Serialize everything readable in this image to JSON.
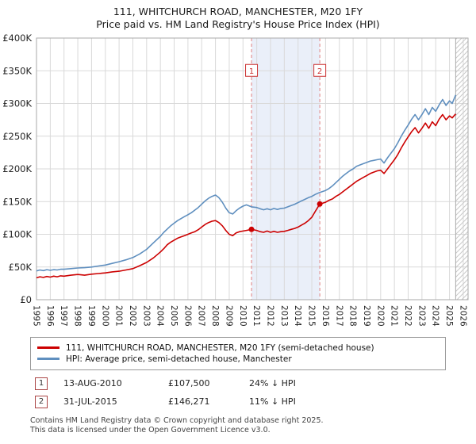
{
  "title": {
    "line1": "111, WHITCHURCH ROAD, MANCHESTER, M20 1FY",
    "line2": "Price paid vs. HM Land Registry's House Price Index (HPI)"
  },
  "chart_data": {
    "type": "line",
    "xlim": [
      1995,
      2026.35
    ],
    "ylim": [
      0,
      400000
    ],
    "yticks": [
      0,
      50000,
      100000,
      150000,
      200000,
      250000,
      300000,
      350000,
      400000
    ],
    "ytick_labels": [
      "£0",
      "£50K",
      "£100K",
      "£150K",
      "£200K",
      "£250K",
      "£300K",
      "£350K",
      "£400K"
    ],
    "x_years": [
      1995,
      1996,
      1997,
      1998,
      1999,
      2000,
      2001,
      2002,
      2003,
      2004,
      2005,
      2006,
      2007,
      2008,
      2009,
      2010,
      2011,
      2012,
      2013,
      2014,
      2015,
      2016,
      2017,
      2018,
      2019,
      2020,
      2021,
      2022,
      2023,
      2024,
      2025,
      2026
    ],
    "grid": true,
    "legend_position": "bottom",
    "colors": {
      "grid": "#d9d9d9",
      "border": "#aaaaaa",
      "dashed": "#e08080",
      "hatch": "#c9c9c9",
      "marker_box_border": "#cc3333",
      "marker_box_text": "#cc3333"
    },
    "shaded_region": {
      "from": 2010.62,
      "to": 2015.58,
      "color": "#eaeff9"
    },
    "hatched_region": {
      "from": 2025.45,
      "to": 2026.35
    },
    "marker_box_y": 350000,
    "x": [
      1995,
      1995.25,
      1995.5,
      1995.75,
      1996,
      1996.25,
      1996.5,
      1996.75,
      1997,
      1997.5,
      1998,
      1998.5,
      1999,
      1999.5,
      2000,
      2000.5,
      2001,
      2001.5,
      2002,
      2002.5,
      2003,
      2003.5,
      2004,
      2004.25,
      2004.5,
      2004.75,
      2005,
      2005.25,
      2005.5,
      2005.75,
      2006,
      2006.25,
      2006.5,
      2006.75,
      2007,
      2007.25,
      2007.5,
      2007.75,
      2008,
      2008.25,
      2008.5,
      2008.75,
      2009,
      2009.25,
      2009.5,
      2009.75,
      2010,
      2010.25,
      2010.62,
      2011,
      2011.25,
      2011.5,
      2011.75,
      2012,
      2012.25,
      2012.5,
      2012.75,
      2013,
      2013.25,
      2013.5,
      2013.75,
      2014,
      2014.25,
      2014.5,
      2014.75,
      2015,
      2015.25,
      2015.58,
      2016,
      2016.25,
      2016.5,
      2016.75,
      2017,
      2017.25,
      2017.5,
      2017.75,
      2018,
      2018.25,
      2018.5,
      2018.75,
      2019,
      2019.25,
      2019.5,
      2019.75,
      2020,
      2020.25,
      2020.5,
      2020.75,
      2021,
      2021.25,
      2021.5,
      2021.75,
      2022,
      2022.25,
      2022.5,
      2022.75,
      2023,
      2023.25,
      2023.5,
      2023.75,
      2024,
      2024.25,
      2024.5,
      2024.75,
      2025,
      2025.2,
      2025.45
    ],
    "series": [
      {
        "name": "111, WHITCHURCH ROAD, MANCHESTER, M20 1FY (semi-detached house)",
        "color": "#cc0000",
        "values": [
          33500,
          35000,
          34000,
          35500,
          34500,
          36000,
          35000,
          36500,
          36000,
          37500,
          38500,
          37500,
          39000,
          40000,
          41000,
          42500,
          43500,
          45500,
          47500,
          52000,
          57000,
          64000,
          73000,
          78000,
          84000,
          88000,
          91000,
          94000,
          96000,
          98000,
          100000,
          102000,
          104000,
          107000,
          111000,
          115000,
          118000,
          120000,
          121000,
          118000,
          113000,
          106000,
          100000,
          98000,
          102000,
          104000,
          105000,
          106000,
          107500,
          106000,
          104000,
          103000,
          105000,
          103000,
          104500,
          103000,
          104000,
          104500,
          106000,
          107500,
          109000,
          111000,
          114000,
          117000,
          121000,
          126000,
          135000,
          146271,
          149000,
          152000,
          154000,
          158000,
          161000,
          165000,
          169000,
          173000,
          177000,
          181000,
          184000,
          187000,
          190000,
          193000,
          195000,
          197000,
          198000,
          193000,
          200000,
          207000,
          214000,
          222000,
          232000,
          241000,
          249000,
          257000,
          263000,
          255000,
          262000,
          270000,
          262000,
          272000,
          266000,
          276000,
          283000,
          275000,
          281000,
          278000,
          284000
        ]
      },
      {
        "name": "HPI: Average price, semi-detached house, Manchester",
        "color": "#5f8fbf",
        "values": [
          44000,
          45500,
          44500,
          46000,
          45000,
          46000,
          45500,
          46500,
          46500,
          47500,
          48500,
          49000,
          50000,
          51500,
          53000,
          55500,
          58000,
          61000,
          64500,
          70000,
          77000,
          87000,
          97000,
          103000,
          108000,
          113000,
          117000,
          121000,
          124000,
          127000,
          130000,
          133000,
          137000,
          141000,
          146000,
          151000,
          155000,
          158000,
          160000,
          156000,
          149000,
          140000,
          133000,
          131000,
          136000,
          140000,
          143000,
          145000,
          142000,
          141000,
          139000,
          137500,
          139000,
          137500,
          139500,
          138000,
          139500,
          140000,
          142000,
          144000,
          146000,
          148500,
          151000,
          153500,
          156000,
          158000,
          161000,
          164000,
          167000,
          170000,
          174000,
          179000,
          184000,
          189000,
          193000,
          197000,
          200000,
          204000,
          206000,
          208000,
          210000,
          212000,
          213000,
          214000,
          215000,
          209000,
          217000,
          224000,
          231000,
          240000,
          250000,
          259000,
          267000,
          276000,
          283000,
          275000,
          283000,
          292000,
          283000,
          294000,
          288000,
          298000,
          306000,
          297000,
          304000,
          300000,
          313000
        ]
      }
    ],
    "markers": [
      {
        "label": "1",
        "x": 2010.62,
        "y": 107500
      },
      {
        "label": "2",
        "x": 2015.58,
        "y": 146271
      }
    ]
  },
  "legend": {
    "items": [
      {
        "label": "111, WHITCHURCH ROAD, MANCHESTER, M20 1FY (semi-detached house)",
        "color": "#cc0000"
      },
      {
        "label": "HPI: Average price, semi-detached house, Manchester",
        "color": "#5f8fbf"
      }
    ]
  },
  "annotations": [
    {
      "num": "1",
      "date": "13-AUG-2010",
      "price": "£107,500",
      "vs_hpi": "24% ↓ HPI"
    },
    {
      "num": "2",
      "date": "31-JUL-2015",
      "price": "£146,271",
      "vs_hpi": "11% ↓ HPI"
    }
  ],
  "footer": {
    "line1": "Contains HM Land Registry data © Crown copyright and database right 2025.",
    "line2": "This data is licensed under the Open Government Licence v3.0."
  }
}
